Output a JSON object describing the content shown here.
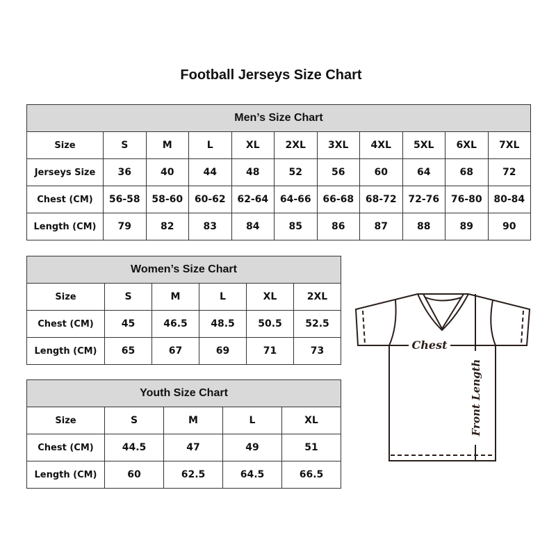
{
  "title": "Football Jerseys Size Chart",
  "men": {
    "heading": "Men’s Size Chart",
    "rows": [
      [
        "Size",
        "S",
        "M",
        "L",
        "XL",
        "2XL",
        "3XL",
        "4XL",
        "5XL",
        "6XL",
        "7XL"
      ],
      [
        "Jerseys Size",
        "36",
        "40",
        "44",
        "48",
        "52",
        "56",
        "60",
        "64",
        "68",
        "72"
      ],
      [
        "Chest (CM)",
        "56-58",
        "58-60",
        "60-62",
        "62-64",
        "64-66",
        "66-68",
        "68-72",
        "72-76",
        "76-80",
        "80-84"
      ],
      [
        "Length (CM)",
        "79",
        "82",
        "83",
        "84",
        "85",
        "86",
        "87",
        "88",
        "89",
        "90"
      ]
    ]
  },
  "women": {
    "heading": "Women’s Size Chart",
    "rows": [
      [
        "Size",
        "S",
        "M",
        "L",
        "XL",
        "2XL"
      ],
      [
        "Chest (CM)",
        "45",
        "46.5",
        "48.5",
        "50.5",
        "52.5"
      ],
      [
        "Length (CM)",
        "65",
        "67",
        "69",
        "71",
        "73"
      ]
    ]
  },
  "youth": {
    "heading": "Youth Size Chart",
    "rows": [
      [
        "Size",
        "S",
        "M",
        "L",
        "XL"
      ],
      [
        "Chest (CM)",
        "44.5",
        "47",
        "49",
        "51"
      ],
      [
        "Length (CM)",
        "60",
        "62.5",
        "64.5",
        "66.5"
      ]
    ]
  },
  "diagram": {
    "chest_label": "Chest",
    "length_label": "Front Length"
  },
  "colors": {
    "header_bg": "#d9d9d9",
    "border": "#333333",
    "line": "#2a1e1a"
  }
}
